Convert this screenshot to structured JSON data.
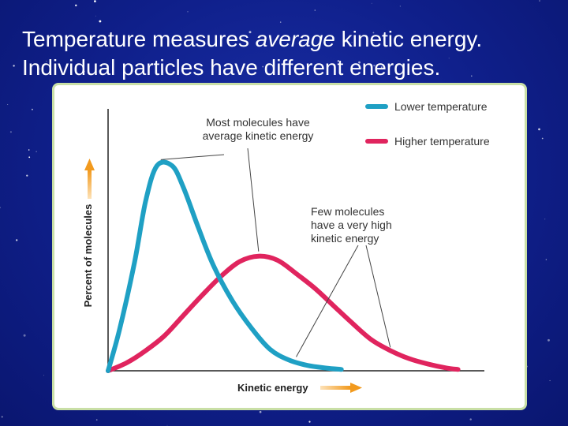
{
  "slide": {
    "title_line1_pre": "Temperature measures ",
    "title_line1_em": "average",
    "title_line1_post": " kinetic energy.",
    "title_line2": "Individual particles have different energies."
  },
  "colors": {
    "background": "#0f1f8a",
    "lower_temperature": "#1fa0c4",
    "higher_temperature": "#e0245e",
    "arrow": "#f29a1e",
    "panel_border": "#c9dfa6"
  },
  "chart_data": {
    "type": "line",
    "title": "",
    "xlabel": "Kinetic energy",
    "ylabel": "Percent of molecules",
    "xlim": [
      0,
      10
    ],
    "ylim": [
      0,
      10
    ],
    "grid": false,
    "legend_position": "top-right",
    "series": [
      {
        "name": "Lower temperature",
        "x": [
          0,
          0.3,
          0.7,
          1.0,
          1.3,
          1.7,
          2.0,
          2.4,
          2.8,
          3.3,
          3.8,
          4.3,
          4.8,
          5.3,
          5.8,
          6.2
        ],
        "y": [
          0.0,
          1.5,
          4.0,
          6.3,
          7.6,
          7.6,
          6.8,
          5.3,
          3.9,
          2.6,
          1.6,
          0.8,
          0.4,
          0.2,
          0.1,
          0.05
        ]
      },
      {
        "name": "Higher temperature",
        "x": [
          0,
          0.5,
          1.0,
          1.5,
          2.0,
          2.5,
          3.0,
          3.5,
          4.0,
          4.5,
          5.0,
          5.5,
          6.0,
          6.5,
          7.0,
          7.5,
          8.0,
          8.5,
          9.0,
          9.3
        ],
        "y": [
          0.0,
          0.3,
          0.75,
          1.3,
          2.05,
          2.8,
          3.5,
          4.05,
          4.25,
          4.1,
          3.6,
          3.05,
          2.4,
          1.75,
          1.15,
          0.75,
          0.45,
          0.25,
          0.1,
          0.05
        ]
      }
    ],
    "annotations": [
      {
        "text_lines": [
          "Most molecules have",
          "average kinetic energy"
        ],
        "targets": [
          [
            1.4,
            7.65
          ],
          [
            4.0,
            4.25
          ]
        ]
      },
      {
        "text_lines": [
          "Few molecules",
          "have a very high",
          "kinetic energy"
        ],
        "targets": [
          [
            5.0,
            0.4
          ],
          [
            7.5,
            0.75
          ]
        ]
      }
    ]
  }
}
